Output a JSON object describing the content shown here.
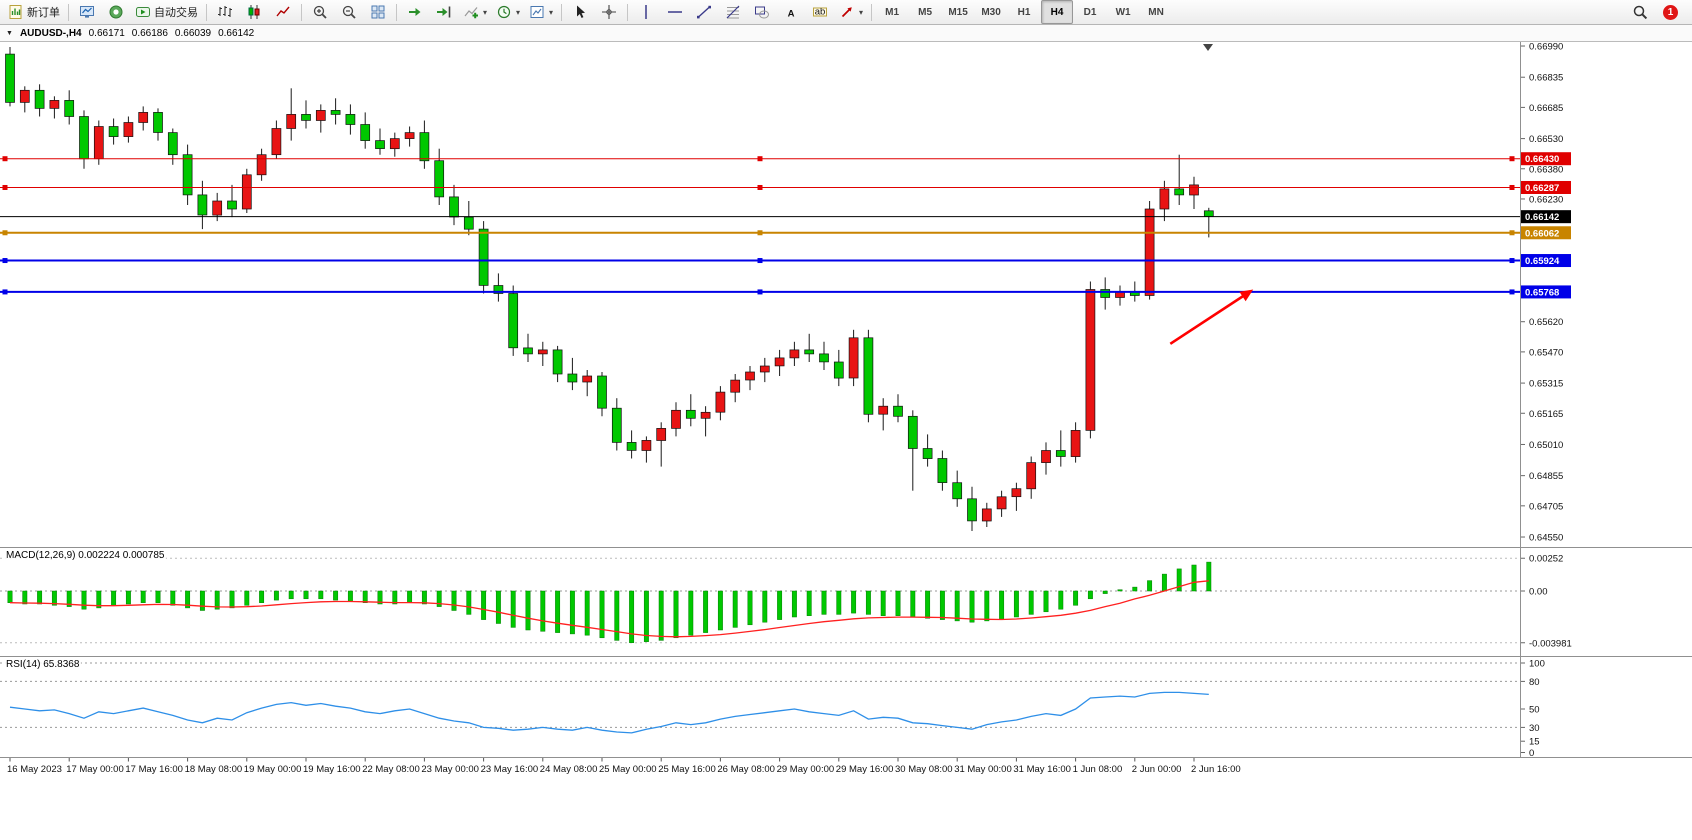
{
  "toolbar": {
    "new_order_label": "新订单",
    "autotrading_label": "自动交易",
    "active_timeframe": "H4",
    "notification_count": "1",
    "groups": [
      {
        "buttons": [
          {
            "name": "new-order-button",
            "icon": "new-order-icon",
            "label": "新订单"
          }
        ]
      },
      {
        "buttons": [
          {
            "name": "terminal-button",
            "icon": "terminal-icon"
          },
          {
            "name": "community-button",
            "icon": "community-icon"
          },
          {
            "name": "autotrading-button",
            "icon": "autotrading-icon",
            "label": "自动交易"
          }
        ]
      },
      {
        "buttons": [
          {
            "name": "bar-chart-button",
            "icon": "bar-chart-icon"
          },
          {
            "name": "candlestick-chart-button",
            "icon": "candlestick-chart-icon"
          },
          {
            "name": "line-chart-button",
            "icon": "line-chart-icon"
          }
        ]
      },
      {
        "buttons": [
          {
            "name": "zoom-in-button",
            "icon": "zoom-in-icon"
          },
          {
            "name": "zoom-out-button",
            "icon": "zoom-out-icon"
          },
          {
            "name": "tile-windows-button",
            "icon": "tile-windows-icon"
          }
        ]
      },
      {
        "buttons": [
          {
            "name": "autoscroll-button",
            "icon": "autoscroll-icon"
          },
          {
            "name": "chart-shift-button",
            "icon": "chart-shift-icon"
          },
          {
            "name": "indicators-button",
            "icon": "indicators-icon",
            "dropdown": true
          },
          {
            "name": "periods-button",
            "icon": "periods-icon",
            "dropdown": true
          },
          {
            "name": "templates-button",
            "icon": "templates-icon",
            "dropdown": true
          }
        ]
      },
      {
        "buttons": [
          {
            "name": "cursor-button",
            "icon": "cursor-icon"
          },
          {
            "name": "crosshair-button",
            "icon": "crosshair-icon"
          }
        ]
      },
      {
        "buttons": [
          {
            "name": "vertical-line-button",
            "icon": "vertical-line-icon"
          },
          {
            "name": "horizontal-line-button",
            "icon": "horizontal-line-icon"
          },
          {
            "name": "trendline-button",
            "icon": "trendline-icon"
          },
          {
            "name": "fibonacci-button",
            "icon": "fibonacci-icon"
          },
          {
            "name": "shapes-button",
            "icon": "shapes-icon"
          },
          {
            "name": "text-button",
            "icon": "text-icon"
          },
          {
            "name": "text-label-button",
            "icon": "text-label-icon"
          },
          {
            "name": "arrows-button",
            "icon": "arrows-icon",
            "dropdown": true
          }
        ]
      },
      {
        "type": "timeframes",
        "buttons": [
          {
            "name": "tf-m1-button",
            "label": "M1"
          },
          {
            "name": "tf-m5-button",
            "label": "M5"
          },
          {
            "name": "tf-m15-button",
            "label": "M15"
          },
          {
            "name": "tf-m30-button",
            "label": "M30"
          },
          {
            "name": "tf-h1-button",
            "label": "H1"
          },
          {
            "name": "tf-h4-button",
            "label": "H4"
          },
          {
            "name": "tf-d1-button",
            "label": "D1"
          },
          {
            "name": "tf-w1-button",
            "label": "W1"
          },
          {
            "name": "tf-mn-button",
            "label": "MN"
          }
        ]
      }
    ],
    "right_buttons": [
      {
        "name": "search-button",
        "icon": "search-icon"
      }
    ]
  },
  "chart_data": {
    "type": "candlestick",
    "symbol": "AUDUSD",
    "timeframe": "H4",
    "title": "AUDUSD-,H4",
    "last_ohlc": {
      "open": "0.66171",
      "high": "0.66186",
      "low": "0.66039",
      "close": "0.66142"
    },
    "style": {
      "bull_color": "#E81414",
      "bear_color": "#00C800",
      "wick_color": "#1a1a1a",
      "macd_hist_color": "#00C800",
      "macd_signal_color": "#FF2020",
      "rsi_color": "#2E8FE8",
      "arrow_color": "#FF0000"
    },
    "x_labels": [
      "16 May 2023",
      "17 May 00:00",
      "17 May 16:00",
      "18 May 08:00",
      "19 May 00:00",
      "19 May 16:00",
      "22 May 08:00",
      "23 May 00:00",
      "23 May 16:00",
      "24 May 08:00",
      "25 May 00:00",
      "25 May 16:00",
      "26 May 08:00",
      "29 May 00:00",
      "29 May 16:00",
      "30 May 08:00",
      "31 May 00:00",
      "31 May 16:00",
      "1 Jun 08:00",
      "2 Jun 00:00",
      "2 Jun 16:00"
    ],
    "label_every_n_candles": 4,
    "y_axis_labels": [
      "0.66990",
      "0.66835",
      "0.66685",
      "0.66530",
      "0.66380",
      "0.66230",
      "0.65620",
      "0.65470",
      "0.65315",
      "0.65165",
      "0.65010",
      "0.64855",
      "0.64705",
      "0.64550"
    ],
    "price_lines": [
      {
        "label": "0.66430",
        "price": 0.6643,
        "color": "#E00000",
        "width": 1,
        "handles": true
      },
      {
        "label": "0.66287",
        "price": 0.66287,
        "color": "#E00000",
        "width": 1,
        "handles": true
      },
      {
        "label": "0.66142",
        "price": 0.66142,
        "color": "#000000",
        "width": 1,
        "handles": false
      },
      {
        "label": "0.66062",
        "price": 0.66062,
        "color": "#C88400",
        "width": 2,
        "handles": true
      },
      {
        "label": "0.65924",
        "price": 0.65924,
        "color": "#0000E8",
        "width": 2,
        "handles": true
      },
      {
        "label": "0.65768",
        "price": 0.65768,
        "color": "#0000E8",
        "width": 2,
        "handles": true
      }
    ],
    "arrow": {
      "x1_index": 78.4,
      "price1": 0.6551,
      "x2_index": 84.0,
      "price2": 0.6578,
      "color": "#FF0000"
    },
    "candles_ohlc": [
      [
        0.6695,
        0.66985,
        0.6669,
        0.6671
      ],
      [
        0.6671,
        0.6679,
        0.6666,
        0.6677
      ],
      [
        0.6677,
        0.668,
        0.6664,
        0.6668
      ],
      [
        0.6668,
        0.6674,
        0.6663,
        0.6672
      ],
      [
        0.6672,
        0.6677,
        0.666,
        0.6664
      ],
      [
        0.6664,
        0.6667,
        0.6638,
        0.6643
      ],
      [
        0.6643,
        0.6662,
        0.664,
        0.6659
      ],
      [
        0.6659,
        0.6663,
        0.665,
        0.6654
      ],
      [
        0.6654,
        0.6664,
        0.6651,
        0.6661
      ],
      [
        0.6661,
        0.6669,
        0.6657,
        0.6666
      ],
      [
        0.6666,
        0.6668,
        0.6652,
        0.6656
      ],
      [
        0.6656,
        0.6658,
        0.664,
        0.6645
      ],
      [
        0.6645,
        0.665,
        0.662,
        0.6625
      ],
      [
        0.6625,
        0.6632,
        0.6608,
        0.6615
      ],
      [
        0.6615,
        0.6626,
        0.6612,
        0.6622
      ],
      [
        0.6622,
        0.663,
        0.6614,
        0.6618
      ],
      [
        0.6618,
        0.6638,
        0.6616,
        0.6635
      ],
      [
        0.6635,
        0.6648,
        0.6632,
        0.6645
      ],
      [
        0.6645,
        0.6662,
        0.6643,
        0.6658
      ],
      [
        0.6658,
        0.6678,
        0.6652,
        0.6665
      ],
      [
        0.6665,
        0.6672,
        0.6658,
        0.6662
      ],
      [
        0.6662,
        0.667,
        0.6656,
        0.6667
      ],
      [
        0.6667,
        0.6673,
        0.666,
        0.6665
      ],
      [
        0.6665,
        0.667,
        0.6655,
        0.666
      ],
      [
        0.666,
        0.6666,
        0.6648,
        0.6652
      ],
      [
        0.6652,
        0.6658,
        0.6645,
        0.6648
      ],
      [
        0.6648,
        0.6656,
        0.6644,
        0.6653
      ],
      [
        0.6653,
        0.6659,
        0.6649,
        0.6656
      ],
      [
        0.6656,
        0.6662,
        0.6638,
        0.6642
      ],
      [
        0.6642,
        0.6648,
        0.662,
        0.6624
      ],
      [
        0.6624,
        0.663,
        0.661,
        0.6614
      ],
      [
        0.6614,
        0.6622,
        0.6605,
        0.6608
      ],
      [
        0.6608,
        0.6612,
        0.6576,
        0.658
      ],
      [
        0.658,
        0.6586,
        0.6572,
        0.6576
      ],
      [
        0.6576,
        0.658,
        0.6545,
        0.6549
      ],
      [
        0.6549,
        0.6556,
        0.6542,
        0.6546
      ],
      [
        0.6546,
        0.6552,
        0.654,
        0.6548
      ],
      [
        0.6548,
        0.655,
        0.6532,
        0.6536
      ],
      [
        0.6536,
        0.6544,
        0.6528,
        0.6532
      ],
      [
        0.6532,
        0.6538,
        0.6525,
        0.6535
      ],
      [
        0.6535,
        0.6537,
        0.6515,
        0.6519
      ],
      [
        0.6519,
        0.6524,
        0.6498,
        0.6502
      ],
      [
        0.6502,
        0.6508,
        0.6494,
        0.6498
      ],
      [
        0.6498,
        0.6505,
        0.6492,
        0.6503
      ],
      [
        0.6503,
        0.6512,
        0.649,
        0.6509
      ],
      [
        0.6509,
        0.6522,
        0.6505,
        0.6518
      ],
      [
        0.6518,
        0.6526,
        0.651,
        0.6514
      ],
      [
        0.6514,
        0.652,
        0.6505,
        0.6517
      ],
      [
        0.6517,
        0.653,
        0.6513,
        0.6527
      ],
      [
        0.6527,
        0.6536,
        0.6522,
        0.6533
      ],
      [
        0.6533,
        0.654,
        0.6528,
        0.6537
      ],
      [
        0.6537,
        0.6544,
        0.6532,
        0.654
      ],
      [
        0.654,
        0.6548,
        0.6535,
        0.6544
      ],
      [
        0.6544,
        0.6552,
        0.654,
        0.6548
      ],
      [
        0.6548,
        0.6556,
        0.6542,
        0.6546
      ],
      [
        0.6546,
        0.6552,
        0.6538,
        0.6542
      ],
      [
        0.6542,
        0.6548,
        0.653,
        0.6534
      ],
      [
        0.6534,
        0.6558,
        0.653,
        0.6554
      ],
      [
        0.6554,
        0.6558,
        0.6512,
        0.6516
      ],
      [
        0.6516,
        0.6524,
        0.6508,
        0.652
      ],
      [
        0.652,
        0.6526,
        0.6512,
        0.6515
      ],
      [
        0.6515,
        0.6518,
        0.6478,
        0.6499
      ],
      [
        0.6499,
        0.6506,
        0.649,
        0.6494
      ],
      [
        0.6494,
        0.6498,
        0.6478,
        0.6482
      ],
      [
        0.6482,
        0.6488,
        0.647,
        0.6474
      ],
      [
        0.6474,
        0.648,
        0.6458,
        0.6463
      ],
      [
        0.6463,
        0.6472,
        0.646,
        0.6469
      ],
      [
        0.6469,
        0.6478,
        0.6465,
        0.6475
      ],
      [
        0.6475,
        0.6482,
        0.6468,
        0.6479
      ],
      [
        0.6479,
        0.6495,
        0.6474,
        0.6492
      ],
      [
        0.6492,
        0.6502,
        0.6486,
        0.6498
      ],
      [
        0.6498,
        0.6508,
        0.649,
        0.6495
      ],
      [
        0.6495,
        0.6512,
        0.6492,
        0.6508
      ],
      [
        0.6508,
        0.6582,
        0.6504,
        0.6578
      ],
      [
        0.6578,
        0.6584,
        0.6568,
        0.6574
      ],
      [
        0.6574,
        0.658,
        0.657,
        0.6577
      ],
      [
        0.6577,
        0.6582,
        0.6572,
        0.6575
      ],
      [
        0.6575,
        0.6622,
        0.6573,
        0.6618
      ],
      [
        0.6618,
        0.6632,
        0.6612,
        0.6628
      ],
      [
        0.6628,
        0.6645,
        0.662,
        0.6625
      ],
      [
        0.6625,
        0.6634,
        0.6618,
        0.663
      ],
      [
        0.66171,
        0.66186,
        0.66039,
        0.66142
      ]
    ],
    "indicators": [
      {
        "name": "MACD",
        "title": "MACD(12,26,9)",
        "values_text": "0.002224 0.000785",
        "axis_labels": [
          "0.00252",
          "0.00",
          "-0.003981"
        ],
        "axis_values": [
          0.00252,
          0,
          -0.003981
        ],
        "histogram": [
          -0.0009,
          -0.001,
          -0.001,
          -0.0011,
          -0.0012,
          -0.0014,
          -0.0013,
          -0.0011,
          -0.001,
          -0.0009,
          -0.0009,
          -0.0011,
          -0.0013,
          -0.0015,
          -0.0014,
          -0.0013,
          -0.0011,
          -0.0009,
          -0.0007,
          -0.0006,
          -0.0006,
          -0.0006,
          -0.0007,
          -0.0008,
          -0.0009,
          -0.001,
          -0.001,
          -0.0009,
          -0.001,
          -0.0012,
          -0.0015,
          -0.0018,
          -0.0022,
          -0.0025,
          -0.0028,
          -0.003,
          -0.0031,
          -0.0032,
          -0.0033,
          -0.0034,
          -0.0036,
          -0.0038,
          -0.00398,
          -0.0039,
          -0.0038,
          -0.0036,
          -0.0034,
          -0.0032,
          -0.003,
          -0.0028,
          -0.0026,
          -0.0024,
          -0.0022,
          -0.002,
          -0.0019,
          -0.0018,
          -0.0018,
          -0.0017,
          -0.0018,
          -0.0019,
          -0.0019,
          -0.002,
          -0.0021,
          -0.0022,
          -0.0023,
          -0.0024,
          -0.0023,
          -0.0022,
          -0.002,
          -0.0018,
          -0.0016,
          -0.0014,
          -0.0011,
          -0.0006,
          -0.0002,
          0.0001,
          0.0003,
          0.0008,
          0.0013,
          0.0017,
          0.002,
          0.002224
        ],
        "signal": [
          -0.0009,
          -0.00092,
          -0.00094,
          -0.00097,
          -0.00102,
          -0.00109,
          -0.00113,
          -0.00113,
          -0.0011,
          -0.00106,
          -0.00103,
          -0.00104,
          -0.00109,
          -0.00117,
          -0.00122,
          -0.00123,
          -0.00121,
          -0.00115,
          -0.00106,
          -0.00097,
          -0.00089,
          -0.00083,
          -0.00081,
          -0.00081,
          -0.00083,
          -0.00086,
          -0.00089,
          -0.00089,
          -0.00091,
          -0.00097,
          -0.00108,
          -0.00122,
          -0.00142,
          -0.00163,
          -0.00187,
          -0.00209,
          -0.0023,
          -0.00248,
          -0.00264,
          -0.00279,
          -0.00296,
          -0.00312,
          -0.0033,
          -0.00342,
          -0.00349,
          -0.00352,
          -0.00349,
          -0.00343,
          -0.00335,
          -0.00324,
          -0.00311,
          -0.00297,
          -0.00281,
          -0.00265,
          -0.0025,
          -0.00236,
          -0.00225,
          -0.00214,
          -0.00207,
          -0.00204,
          -0.00201,
          -0.00201,
          -0.00202,
          -0.00204,
          -0.00209,
          -0.00215,
          -0.00218,
          -0.00219,
          -0.00215,
          -0.00208,
          -0.00198,
          -0.00187,
          -0.00171,
          -0.00149,
          -0.0012,
          -0.00094,
          -0.00061,
          -0.00033,
          0.0,
          0.00034,
          0.00067,
          0.000785
        ]
      },
      {
        "name": "RSI",
        "title": "RSI(14)",
        "values_text": "65.8368",
        "axis_labels": [
          "100",
          "80",
          "50",
          "30",
          "15",
          "0"
        ],
        "dashed_levels": [
          100,
          80,
          30
        ],
        "values": [
          52,
          50,
          48,
          49,
          45,
          40,
          47,
          45,
          48,
          51,
          47,
          43,
          38,
          35,
          40,
          38,
          46,
          51,
          55,
          57,
          54,
          56,
          53,
          51,
          47,
          45,
          48,
          50,
          45,
          40,
          37,
          35,
          30,
          29,
          27,
          28,
          30,
          28,
          27,
          30,
          27,
          25,
          24,
          28,
          31,
          35,
          33,
          35,
          39,
          42,
          44,
          46,
          48,
          50,
          47,
          45,
          43,
          48,
          39,
          41,
          40,
          35,
          34,
          32,
          30,
          28,
          33,
          36,
          38,
          42,
          45,
          43,
          50,
          62,
          63,
          64,
          63,
          67,
          68,
          68,
          67,
          65.8368
        ]
      }
    ]
  }
}
